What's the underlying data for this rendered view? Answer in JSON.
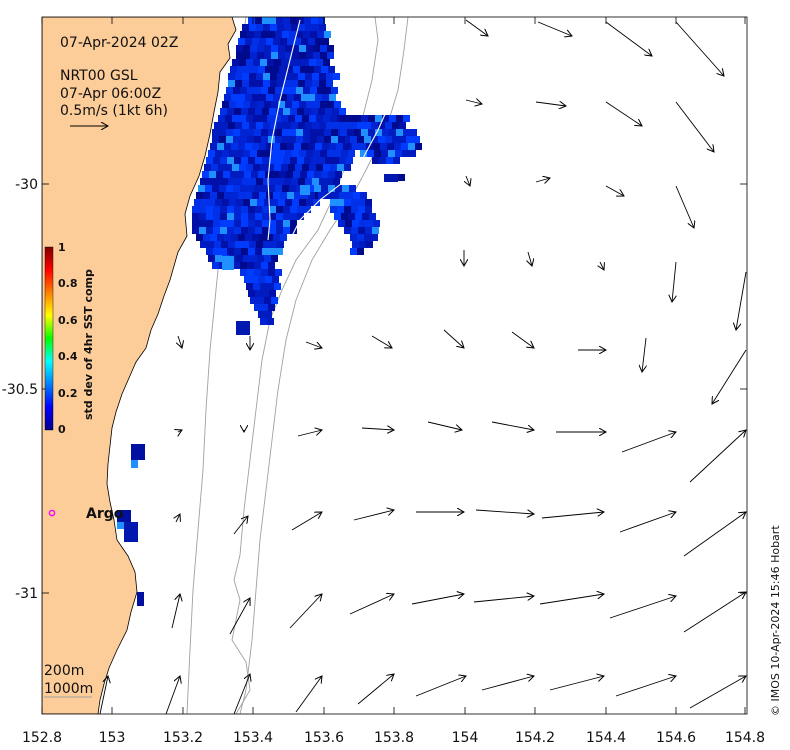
{
  "map": {
    "title": "07-Apr-2024 02Z",
    "product_line1": "NRT00 GSL",
    "product_line2": "07-Apr 06:00Z",
    "arrow_scale_label": "0.5m/s (1kt 6h)",
    "colorbar": {
      "label": "std dev of 4hr SST comp",
      "ticks": [
        "0",
        "0.2",
        "0.4",
        "0.6",
        "0.8",
        "1"
      ],
      "colors": [
        "#00008f",
        "#0000ff",
        "#00ffff",
        "#00ff00",
        "#ffff00",
        "#ff0000",
        "#800000"
      ]
    },
    "x_ticks": [
      "152.8",
      "153",
      "153.2",
      "153.4",
      "153.6",
      "153.8",
      "154",
      "154.2",
      "154.4",
      "154.6",
      "154.8"
    ],
    "y_ticks": [
      "-30",
      "-30.5",
      "-31"
    ],
    "argo_label": "Argo",
    "isobath_labels": [
      "200m",
      "1000m"
    ],
    "credit": "© IMOS 10-Apr-2024 15:46 Hobart",
    "colors": {
      "land": "#fccc99",
      "isobath": "#a0a0a0",
      "argo_marker": "#ff00ff",
      "sst_base": "#001a9e"
    }
  }
}
